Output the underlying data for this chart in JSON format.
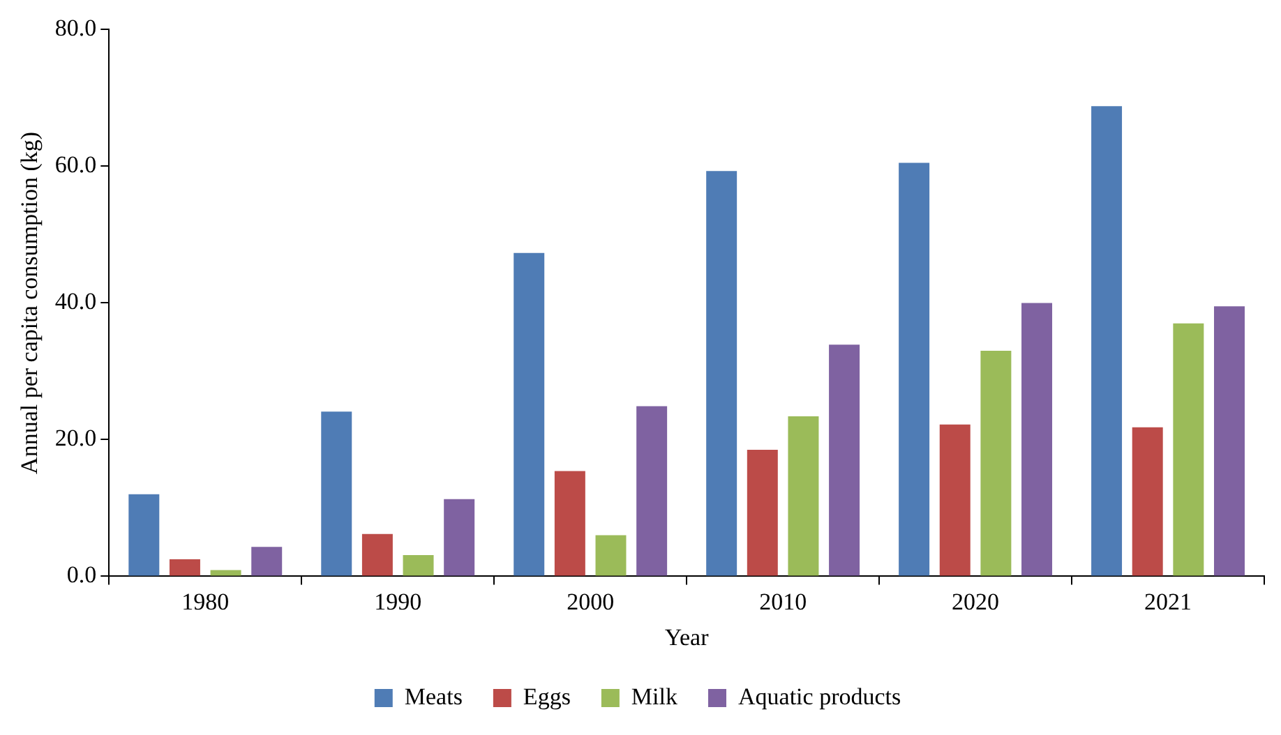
{
  "chart_data": {
    "type": "bar",
    "xlabel": "Year",
    "ylabel": "Annual per capita consumption (kg)",
    "categories": [
      "1980",
      "1990",
      "2000",
      "2010",
      "2020",
      "2021"
    ],
    "series": [
      {
        "name": "Meats",
        "color": "#4f7cb5",
        "values": [
          12.0,
          24.1,
          47.3,
          59.3,
          60.5,
          68.8
        ]
      },
      {
        "name": "Eggs",
        "color": "#bc4b48",
        "values": [
          2.5,
          6.2,
          15.4,
          18.5,
          22.2,
          21.8
        ]
      },
      {
        "name": "Milk",
        "color": "#9bbb59",
        "values": [
          0.9,
          3.1,
          6.0,
          23.4,
          33.0,
          37.0
        ]
      },
      {
        "name": "Aquatic products",
        "color": "#7f62a1",
        "values": [
          4.3,
          11.3,
          24.9,
          33.9,
          40.0,
          39.5
        ]
      }
    ],
    "ylim": [
      0,
      80
    ],
    "yticks": [
      {
        "value": 0,
        "label": "0.0"
      },
      {
        "value": 20,
        "label": "20.0"
      },
      {
        "value": 40,
        "label": "40.0"
      },
      {
        "value": 60,
        "label": "60.0"
      },
      {
        "value": 80,
        "label": "80.0"
      }
    ],
    "grid": false,
    "legend": "bottom"
  }
}
